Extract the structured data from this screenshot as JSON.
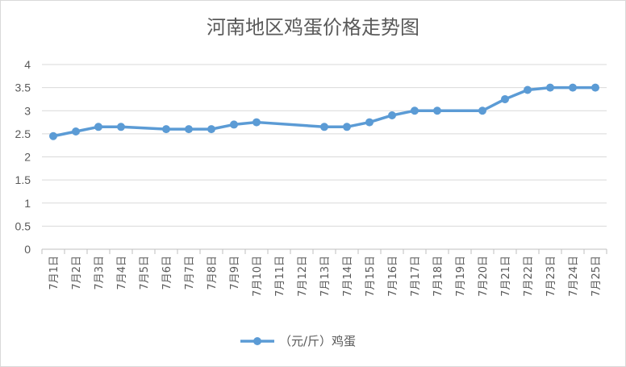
{
  "chart_data": {
    "type": "line",
    "title": "河南地区鸡蛋价格走势图",
    "categories": [
      "7月1日",
      "7月2日",
      "7月3日",
      "7月4日",
      "7月5日",
      "7月6日",
      "7月7日",
      "7月8日",
      "7月9日",
      "7月10日",
      "7月11日",
      "7月12日",
      "7月13日",
      "7月14日",
      "7月15日",
      "7月16日",
      "7月17日",
      "7月18日",
      "7月19日",
      "7月20日",
      "7月21日",
      "7月22日",
      "7月23日",
      "7月24日",
      "7月25日"
    ],
    "series": [
      {
        "name": "（元/斤）鸡蛋",
        "color": "#5b9bd5",
        "values": [
          2.45,
          2.55,
          2.65,
          2.65,
          null,
          2.6,
          2.6,
          2.6,
          2.7,
          2.75,
          null,
          null,
          2.65,
          2.65,
          2.75,
          2.9,
          3.0,
          3.0,
          null,
          3.0,
          3.25,
          3.45,
          3.5,
          3.5,
          3.5
        ]
      }
    ],
    "yticks": [
      "0",
      "0.5",
      "1",
      "1.5",
      "2",
      "2.5",
      "3",
      "3.5",
      "4"
    ],
    "ylim": [
      0,
      4
    ],
    "grid": true,
    "legend": "bottom"
  }
}
